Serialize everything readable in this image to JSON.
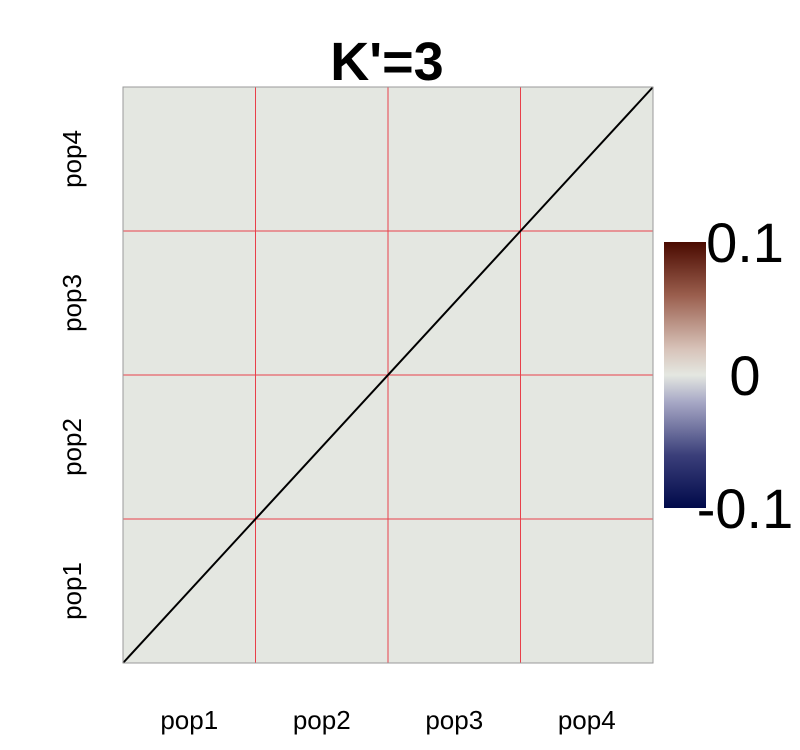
{
  "chart_data": {
    "type": "heatmap",
    "title": "K'=3",
    "x_tick_labels": [
      "pop1",
      "pop2",
      "pop3",
      "pop4"
    ],
    "y_tick_labels": [
      "pop1",
      "pop2",
      "pop3",
      "pop4"
    ],
    "values": [
      [
        0,
        0,
        0,
        0
      ],
      [
        0,
        0,
        0,
        0
      ],
      [
        0,
        0,
        0,
        0
      ],
      [
        0,
        0,
        0,
        0
      ]
    ],
    "diagonal_line": true,
    "grid": true,
    "colorbar": {
      "min": -0.1,
      "max": 0.1,
      "tick_labels": [
        "0.1",
        "0",
        "-0.1"
      ],
      "tick_values": [
        0.1,
        0,
        -0.1
      ],
      "colors": [
        "#000a4a",
        "#e4e7e1",
        "#4a0a00"
      ]
    },
    "colors": {
      "cell_fill": "#e4e7e1",
      "grid_lines": "#e8404a",
      "diagonal": "#000000"
    }
  }
}
